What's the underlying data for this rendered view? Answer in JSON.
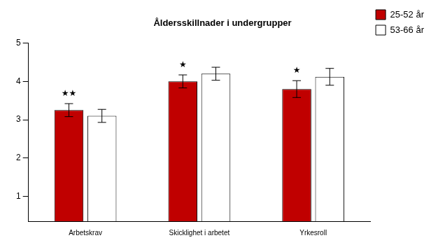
{
  "chart_data": {
    "type": "bar",
    "title": "Åldersskillnader i undergrupper",
    "categories": [
      "Arbetskrav",
      "Skicklighet i arbetet",
      "Yrkesroll"
    ],
    "series": [
      {
        "name": "25-52 år",
        "color": "#c00000",
        "values": [
          3.25,
          4.0,
          3.8
        ],
        "errors": [
          0.17,
          0.17,
          0.22
        ]
      },
      {
        "name": "53-66 år",
        "color": "#ffffff",
        "values": [
          3.1,
          4.2,
          4.12
        ],
        "errors": [
          0.17,
          0.17,
          0.22
        ]
      }
    ],
    "ylim": [
      0.35,
      5
    ],
    "yticks": [
      1,
      2,
      3,
      4,
      5
    ],
    "grid": false,
    "legend": "upper right",
    "annotations": [
      {
        "category": "Arbetskrav",
        "series": "25-52 år",
        "text": "★★"
      },
      {
        "category": "Skicklighet i arbetet",
        "series": "25-52 år",
        "text": "★"
      },
      {
        "category": "Yrkesroll",
        "series": "25-52 år",
        "text": "★"
      }
    ]
  }
}
